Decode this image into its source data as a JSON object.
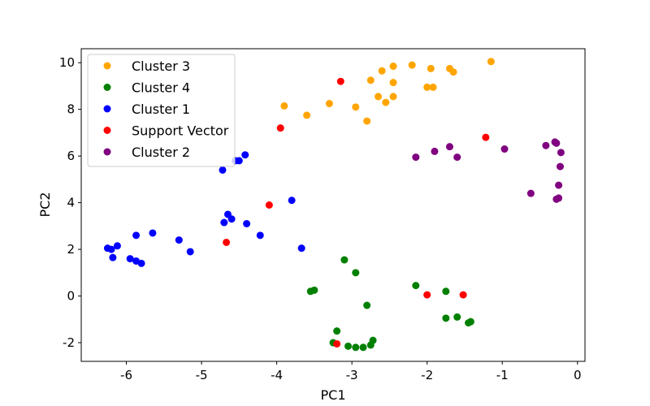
{
  "chart_data": {
    "type": "scatter",
    "xlabel": "PC1",
    "ylabel": "PC2",
    "xlim": [
      -6.6,
      0.1
    ],
    "ylim": [
      -2.8,
      10.6
    ],
    "xticks": [
      -6,
      -5,
      -4,
      -3,
      -2,
      -1,
      0
    ],
    "yticks": [
      -2,
      0,
      2,
      4,
      6,
      8,
      10
    ],
    "grid": false,
    "legend_position": "top-left",
    "series": [
      {
        "name": "Cluster 3",
        "color": "#ffa500",
        "points": [
          [
            -3.9,
            8.15
          ],
          [
            -3.6,
            7.75
          ],
          [
            -3.3,
            8.25
          ],
          [
            -2.95,
            8.1
          ],
          [
            -2.8,
            7.5
          ],
          [
            -2.75,
            9.25
          ],
          [
            -2.65,
            8.55
          ],
          [
            -2.6,
            9.65
          ],
          [
            -2.55,
            8.3
          ],
          [
            -2.45,
            9.15
          ],
          [
            -2.45,
            9.85
          ],
          [
            -2.45,
            8.55
          ],
          [
            -2.2,
            9.9
          ],
          [
            -2.0,
            8.95
          ],
          [
            -1.95,
            9.75
          ],
          [
            -1.92,
            8.95
          ],
          [
            -1.7,
            9.75
          ],
          [
            -1.65,
            9.6
          ],
          [
            -1.15,
            10.05
          ]
        ]
      },
      {
        "name": "Cluster 4",
        "color": "#008000",
        "points": [
          [
            -3.55,
            0.2
          ],
          [
            -3.5,
            0.25
          ],
          [
            -3.25,
            -2.0
          ],
          [
            -3.2,
            -1.5
          ],
          [
            -3.1,
            1.55
          ],
          [
            -3.05,
            -2.15
          ],
          [
            -2.95,
            1.0
          ],
          [
            -2.95,
            -2.2
          ],
          [
            -2.85,
            -2.2
          ],
          [
            -2.8,
            -0.4
          ],
          [
            -2.75,
            -2.1
          ],
          [
            -2.72,
            -1.9
          ],
          [
            -2.15,
            0.45
          ],
          [
            -1.75,
            0.2
          ],
          [
            -1.75,
            -0.95
          ],
          [
            -1.6,
            -0.9
          ],
          [
            -1.45,
            -1.15
          ],
          [
            -1.42,
            -1.1
          ]
        ]
      },
      {
        "name": "Cluster 1",
        "color": "#0000ff",
        "points": [
          [
            -6.25,
            2.05
          ],
          [
            -6.2,
            2.0
          ],
          [
            -6.18,
            1.65
          ],
          [
            -6.12,
            2.15
          ],
          [
            -5.95,
            1.6
          ],
          [
            -5.87,
            2.6
          ],
          [
            -5.87,
            1.5
          ],
          [
            -5.8,
            1.4
          ],
          [
            -5.65,
            2.7
          ],
          [
            -5.3,
            2.4
          ],
          [
            -5.15,
            1.9
          ],
          [
            -4.72,
            5.4
          ],
          [
            -4.7,
            3.15
          ],
          [
            -4.65,
            3.5
          ],
          [
            -4.6,
            3.3
          ],
          [
            -4.55,
            5.8
          ],
          [
            -4.5,
            5.8
          ],
          [
            -4.42,
            6.05
          ],
          [
            -4.4,
            3.1
          ],
          [
            -4.22,
            2.6
          ],
          [
            -3.8,
            4.1
          ],
          [
            -3.67,
            2.05
          ]
        ]
      },
      {
        "name": "Support Vector",
        "color": "#ff0000",
        "points": [
          [
            -4.67,
            2.3
          ],
          [
            -4.1,
            3.9
          ],
          [
            -3.95,
            7.2
          ],
          [
            -3.15,
            9.2
          ],
          [
            -3.2,
            -2.05
          ],
          [
            -2.0,
            0.05
          ],
          [
            -1.52,
            0.05
          ],
          [
            -1.22,
            6.8
          ]
        ]
      },
      {
        "name": "Cluster 2",
        "color": "#800080",
        "points": [
          [
            -2.15,
            5.95
          ],
          [
            -1.9,
            6.2
          ],
          [
            -1.7,
            6.4
          ],
          [
            -1.6,
            5.95
          ],
          [
            -0.97,
            6.3
          ],
          [
            -0.62,
            4.4
          ],
          [
            -0.42,
            6.45
          ],
          [
            -0.3,
            6.6
          ],
          [
            -0.28,
            6.55
          ],
          [
            -0.28,
            4.15
          ],
          [
            -0.25,
            4.75
          ],
          [
            -0.25,
            4.2
          ],
          [
            -0.23,
            5.55
          ],
          [
            -0.22,
            6.15
          ]
        ]
      }
    ]
  }
}
